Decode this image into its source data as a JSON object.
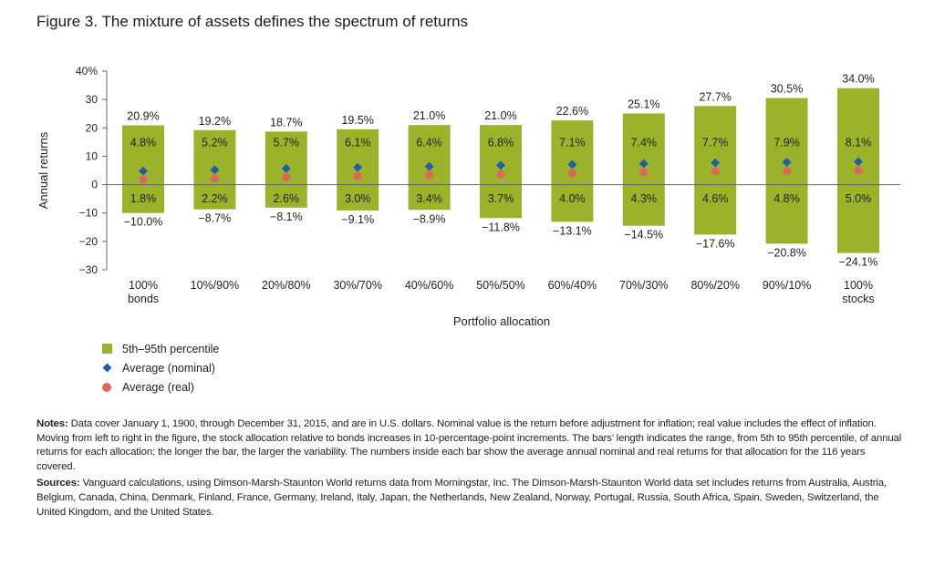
{
  "figure_title": "Figure 3. The mixture of assets defines the spectrum of returns",
  "colors": {
    "bar": "#9bb32b",
    "nominal": "#1f5ea8",
    "real": "#e0665a",
    "axis": "#666666"
  },
  "chart_data": {
    "type": "bar",
    "subtype": "floating-range-with-markers",
    "xlabel": "Portfolio allocation",
    "ylabel": "Annual returns",
    "ylim": [
      -30,
      40
    ],
    "yticks": [
      40,
      30,
      20,
      10,
      0,
      -10,
      -20,
      -30
    ],
    "ytick_labels": [
      "40%",
      "30",
      "20",
      "10",
      "0",
      "−10",
      "−20",
      "−30"
    ],
    "categories": [
      [
        "100%",
        "bonds"
      ],
      [
        "10%/90%"
      ],
      [
        "20%/80%"
      ],
      [
        "30%/70%"
      ],
      [
        "40%/60%"
      ],
      [
        "50%/50%"
      ],
      [
        "60%/40%"
      ],
      [
        "70%/30%"
      ],
      [
        "80%/20%"
      ],
      [
        "90%/10%"
      ],
      [
        "100%",
        "stocks"
      ]
    ],
    "p95": [
      20.9,
      19.2,
      18.7,
      19.5,
      21.0,
      21.0,
      22.6,
      25.1,
      27.7,
      30.5,
      34.0
    ],
    "p95_labels": [
      "20.9%",
      "19.2%",
      "18.7%",
      "19.5%",
      "21.0%",
      "21.0%",
      "22.6%",
      "25.1%",
      "27.7%",
      "30.5%",
      "34.0%"
    ],
    "p5": [
      -10.0,
      -8.7,
      -8.1,
      -9.1,
      -8.9,
      -11.8,
      -13.1,
      -14.5,
      -17.6,
      -20.8,
      -24.1
    ],
    "p5_labels": [
      "−10.0%",
      "−8.7%",
      "−8.1%",
      "−9.1%",
      "−8.9%",
      "−11.8%",
      "−13.1%",
      "−14.5%",
      "−17.6%",
      "−20.8%",
      "−24.1%"
    ],
    "nominal": [
      4.8,
      5.2,
      5.7,
      6.1,
      6.4,
      6.8,
      7.1,
      7.4,
      7.7,
      7.9,
      8.1
    ],
    "nominal_labels": [
      "4.8%",
      "5.2%",
      "5.7%",
      "6.1%",
      "6.4%",
      "6.8%",
      "7.1%",
      "7.4%",
      "7.7%",
      "7.9%",
      "8.1%"
    ],
    "real": [
      1.8,
      2.2,
      2.6,
      3.0,
      3.4,
      3.7,
      4.0,
      4.3,
      4.6,
      4.8,
      5.0
    ],
    "real_labels": [
      "1.8%",
      "2.2%",
      "2.6%",
      "3.0%",
      "3.4%",
      "3.7%",
      "4.0%",
      "4.3%",
      "4.6%",
      "4.8%",
      "5.0%"
    ],
    "legend": [
      "5th–95th percentile",
      "Average (nominal)",
      "Average (real)"
    ],
    "legend_position": "bottom-left"
  },
  "notes": {
    "notes_label": "Notes:",
    "notes_text": "Data cover January 1, 1900, through December 31, 2015, and are in U.S. dollars. Nominal value is the return before adjustment for inflation; real value includes the effect of inflation. Moving from left to right in the figure, the stock allocation relative to bonds increases in 10-percentage-point increments. The bars’ length indicates the range, from 5th to 95th percentile, of annual returns for each allocation; the longer the bar, the larger the variability. The numbers inside each bar show the average annual nominal and real returns for that allocation for the 116 years covered.",
    "sources_label": "Sources:",
    "sources_text": "Vanguard calculations, using Dimson-Marsh-Staunton World returns data from Morningstar, Inc. The Dimson-Marsh-Staunton World data set includes returns from Australia, Austria, Belgium, Canada, China, Denmark, Finland, France, Germany, Ireland, Italy, Japan, the Netherlands, New Zealand, Norway, Portugal, Russia, South Africa, Spain, Sweden, Switzerland, the United Kingdom, and the United States."
  }
}
